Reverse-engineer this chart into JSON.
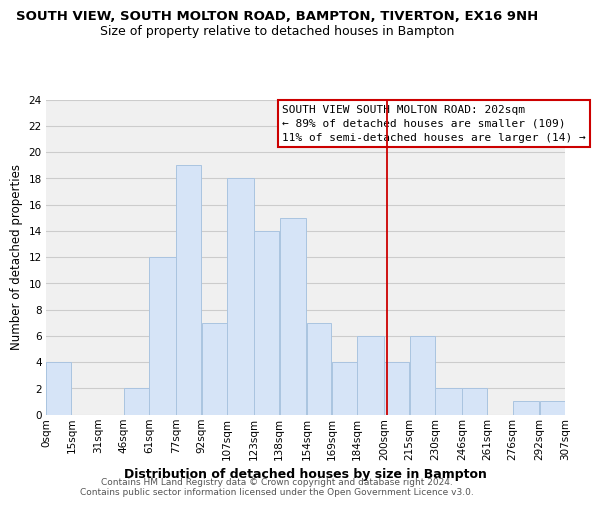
{
  "title": "SOUTH VIEW, SOUTH MOLTON ROAD, BAMPTON, TIVERTON, EX16 9NH",
  "subtitle": "Size of property relative to detached houses in Bampton",
  "xlabel": "Distribution of detached houses by size in Bampton",
  "ylabel": "Number of detached properties",
  "bar_color": "#d6e4f7",
  "bar_edge_color": "#aac4e0",
  "bin_labels": [
    "0sqm",
    "15sqm",
    "31sqm",
    "46sqm",
    "61sqm",
    "77sqm",
    "92sqm",
    "107sqm",
    "123sqm",
    "138sqm",
    "154sqm",
    "169sqm",
    "184sqm",
    "200sqm",
    "215sqm",
    "230sqm",
    "246sqm",
    "261sqm",
    "276sqm",
    "292sqm",
    "307sqm"
  ],
  "bin_edges": [
    0,
    15,
    31,
    46,
    61,
    77,
    92,
    107,
    123,
    138,
    154,
    169,
    184,
    200,
    215,
    230,
    246,
    261,
    276,
    292,
    307
  ],
  "bar_heights": [
    4,
    0,
    0,
    2,
    12,
    19,
    7,
    18,
    14,
    15,
    7,
    4,
    6,
    4,
    6,
    2,
    2,
    0,
    1,
    1
  ],
  "vline_x": 202,
  "ylim": [
    0,
    24
  ],
  "yticks": [
    0,
    2,
    4,
    6,
    8,
    10,
    12,
    14,
    16,
    18,
    20,
    22,
    24
  ],
  "annotation_title": "SOUTH VIEW SOUTH MOLTON ROAD: 202sqm",
  "annotation_line1": "← 89% of detached houses are smaller (109)",
  "annotation_line2": "11% of semi-detached houses are larger (14) →",
  "footnote1": "Contains HM Land Registry data © Crown copyright and database right 2024.",
  "footnote2": "Contains public sector information licensed under the Open Government Licence v3.0.",
  "background_color": "#f0f0f0",
  "grid_color": "#cccccc",
  "title_fontsize": 9.5,
  "subtitle_fontsize": 9,
  "xlabel_fontsize": 9,
  "ylabel_fontsize": 8.5,
  "tick_fontsize": 7.5,
  "annot_fontsize": 8,
  "footnote_fontsize": 6.5
}
